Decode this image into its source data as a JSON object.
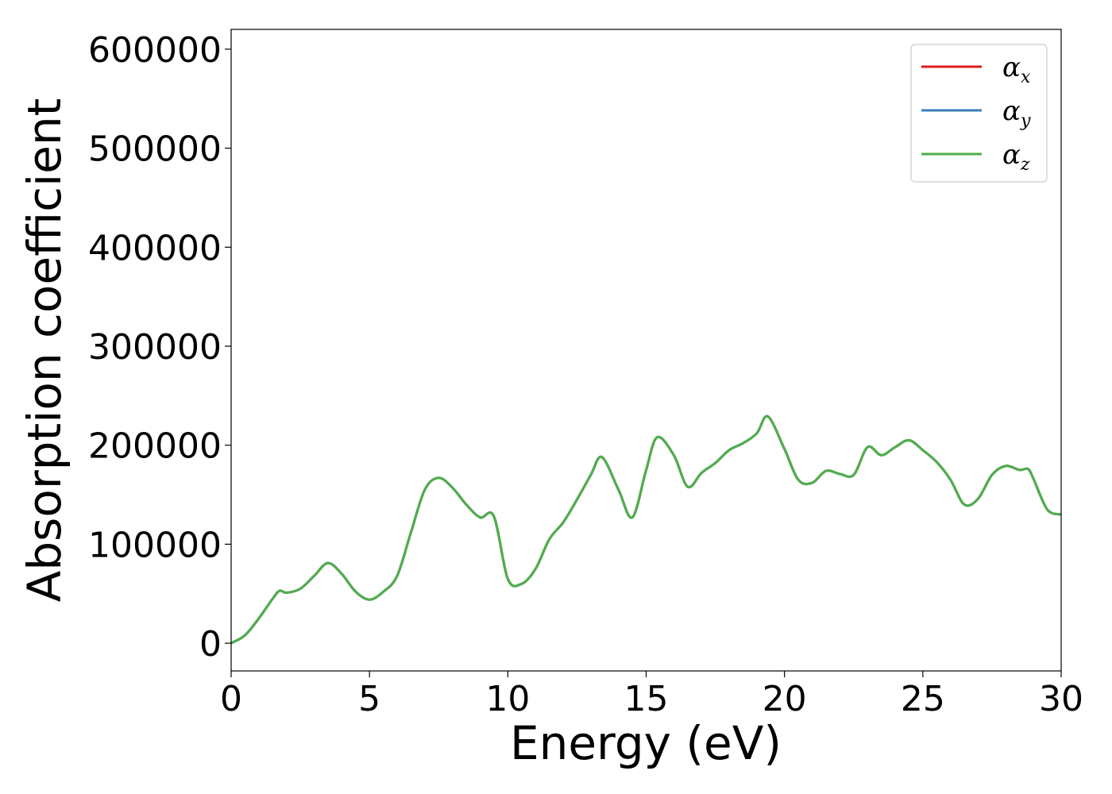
{
  "chart_data": {
    "type": "line",
    "xlabel": "Energy (eV)",
    "ylabel": "Absorption coefficient",
    "xlim": [
      0,
      30
    ],
    "ylim": [
      -28000,
      620000
    ],
    "x_ticks": [
      0,
      5,
      10,
      15,
      20,
      25,
      30
    ],
    "y_ticks": [
      0,
      100000,
      200000,
      300000,
      400000,
      500000,
      600000
    ],
    "x_tick_labels": [
      "0",
      "5",
      "10",
      "15",
      "20",
      "25",
      "30"
    ],
    "y_tick_labels": [
      "0",
      "100000",
      "200000",
      "300000",
      "400000",
      "500000",
      "600000"
    ],
    "grid": false,
    "legend_position": "top-right",
    "x": [
      0,
      0.5,
      1.0,
      1.5,
      1.75,
      2.0,
      2.5,
      3.0,
      3.5,
      4.0,
      4.5,
      5.0,
      5.5,
      6.0,
      6.5,
      7.0,
      7.5,
      8.0,
      8.5,
      9.0,
      9.5,
      10.0,
      10.5,
      11.0,
      11.5,
      12.0,
      12.5,
      13.0,
      13.4,
      14.0,
      14.5,
      15.0,
      15.4,
      16.0,
      16.5,
      17.0,
      17.5,
      18.0,
      18.5,
      19.0,
      19.4,
      20.0,
      20.5,
      21.0,
      21.5,
      22.0,
      22.5,
      23.0,
      23.5,
      24.0,
      24.5,
      25.0,
      25.5,
      26.0,
      26.5,
      27.0,
      27.5,
      28.0,
      28.5,
      28.8,
      29.0,
      29.5,
      30.0
    ],
    "series": [
      {
        "name": "α_x",
        "label_base": "α",
        "label_sub": "x",
        "color": "#e41a1c",
        "values": [
          0,
          8000,
          25000,
          45000,
          53000,
          51000,
          55000,
          68000,
          81000,
          70000,
          52000,
          44000,
          52000,
          68000,
          112000,
          155000,
          167000,
          157000,
          140000,
          127000,
          128000,
          65000,
          60000,
          75000,
          105000,
          122000,
          145000,
          170000,
          188000,
          155000,
          127000,
          175000,
          208000,
          190000,
          158000,
          172000,
          182000,
          195000,
          202000,
          212000,
          229000,
          196000,
          165000,
          162000,
          174000,
          171000,
          170000,
          198000,
          190000,
          198000,
          205000,
          195000,
          183000,
          165000,
          140000,
          146000,
          170000,
          179000,
          175000,
          176000,
          166000,
          135000,
          130000
        ]
      },
      {
        "name": "α_y",
        "label_base": "α",
        "label_sub": "y",
        "color": "#377eb8",
        "values": [
          0,
          8000,
          25000,
          45000,
          53000,
          51000,
          55000,
          68000,
          81000,
          70000,
          52000,
          44000,
          52000,
          68000,
          112000,
          155000,
          167000,
          157000,
          140000,
          127000,
          128000,
          65000,
          60000,
          75000,
          105000,
          122000,
          145000,
          170000,
          188000,
          155000,
          127000,
          175000,
          208000,
          190000,
          158000,
          172000,
          182000,
          195000,
          202000,
          212000,
          229000,
          196000,
          165000,
          162000,
          174000,
          171000,
          170000,
          198000,
          190000,
          198000,
          205000,
          195000,
          183000,
          165000,
          140000,
          146000,
          170000,
          179000,
          175000,
          176000,
          166000,
          135000,
          130000
        ]
      },
      {
        "name": "α_z",
        "label_base": "α",
        "label_sub": "z",
        "color": "#4daf4a",
        "values": [
          0,
          8000,
          25000,
          45000,
          53000,
          51000,
          55000,
          68000,
          81000,
          70000,
          52000,
          44000,
          52000,
          68000,
          112000,
          155000,
          167000,
          157000,
          140000,
          127000,
          128000,
          65000,
          60000,
          75000,
          105000,
          122000,
          145000,
          170000,
          188000,
          155000,
          127000,
          175000,
          208000,
          190000,
          158000,
          172000,
          182000,
          195000,
          202000,
          212000,
          229000,
          196000,
          165000,
          162000,
          174000,
          171000,
          170000,
          198000,
          190000,
          198000,
          205000,
          195000,
          183000,
          165000,
          140000,
          146000,
          170000,
          179000,
          175000,
          176000,
          166000,
          135000,
          130000
        ]
      }
    ]
  }
}
